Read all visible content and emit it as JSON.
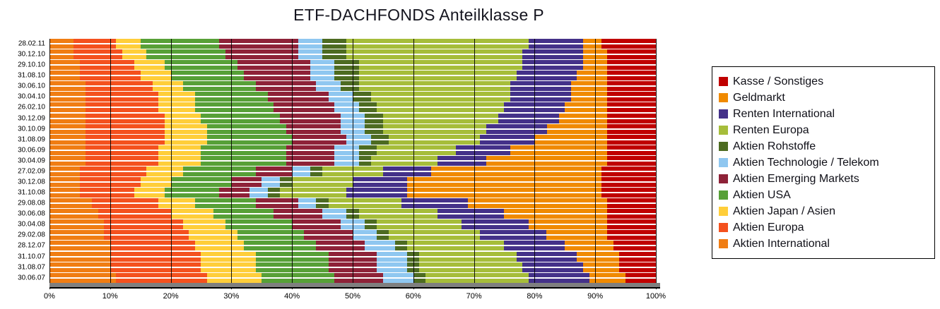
{
  "title": "ETF-DACHFONDS Anteilklasse P",
  "chart_data": {
    "type": "bar",
    "stacked": true,
    "orientation": "horizontal",
    "title": "ETF-DACHFONDS Anteilklasse P",
    "xlabel": "",
    "ylabel": "",
    "xlim": [
      0,
      100
    ],
    "grid": "vertical",
    "legend_position": "right",
    "x_tick_labels": [
      "0%",
      "10%",
      "20%",
      "30%",
      "40%",
      "50%",
      "60%",
      "70%",
      "80%",
      "90%",
      "100%"
    ],
    "categories": [
      "28.02.11",
      "30.12.10",
      "29.10.10",
      "31.08.10",
      "30.06.10",
      "30.04.10",
      "26.02.10",
      "30.12.09",
      "30.10.09",
      "31.08.09",
      "30.06.09",
      "30.04.09",
      "27.02.09",
      "30.12.08",
      "31.10.08",
      "29.08.08",
      "30.06.08",
      "30.04.08",
      "29.02.08",
      "28.12.07",
      "31.10.07",
      "31.08.07",
      "30.06.07"
    ],
    "series": [
      {
        "name": "Aktien International",
        "color": "#F07D13",
        "values": [
          4,
          4,
          5,
          5,
          6,
          6,
          6,
          6,
          6,
          6,
          6,
          6,
          5,
          5,
          5,
          7,
          8,
          9,
          9,
          10,
          10,
          10,
          11
        ]
      },
      {
        "name": "Aktien Europa",
        "color": "#F4511E",
        "values": [
          7,
          8,
          9,
          10,
          11,
          12,
          12,
          13,
          13,
          13,
          12,
          12,
          11,
          10,
          9,
          11,
          12,
          13,
          14,
          14,
          15,
          15,
          15
        ]
      },
      {
        "name": "Aktien Japan / Asien",
        "color": "#FFCE3A",
        "values": [
          4,
          4,
          5,
          5,
          5,
          6,
          6,
          6,
          7,
          7,
          7,
          7,
          6,
          5,
          5,
          6,
          7,
          7,
          8,
          8,
          9,
          9,
          9
        ]
      },
      {
        "name": "Aktien USA",
        "color": "#57A037",
        "values": [
          13,
          13,
          12,
          12,
          12,
          12,
          13,
          13,
          13,
          14,
          14,
          14,
          12,
          10,
          9,
          10,
          10,
          11,
          11,
          12,
          12,
          12,
          12
        ]
      },
      {
        "name": "Aktien Emerging Markets",
        "color": "#8E2238",
        "values": [
          13,
          12,
          12,
          11,
          10,
          10,
          10,
          10,
          9,
          9,
          8,
          8,
          6,
          5,
          5,
          7,
          8,
          8,
          8,
          8,
          8,
          8,
          8
        ]
      },
      {
        "name": "Aktien Technologie / Telekom",
        "color": "#8FC7F0",
        "values": [
          4,
          4,
          4,
          4,
          4,
          4,
          4,
          4,
          4,
          4,
          4,
          4,
          3,
          3,
          3,
          3,
          4,
          4,
          4,
          5,
          5,
          5,
          5
        ]
      },
      {
        "name": "Aktien Rohstoffe",
        "color": "#4D6B21",
        "values": [
          4,
          4,
          4,
          4,
          3,
          3,
          3,
          3,
          3,
          3,
          3,
          2,
          2,
          2,
          2,
          2,
          2,
          2,
          2,
          2,
          2,
          2,
          2
        ]
      },
      {
        "name": "Renten Europa",
        "color": "#A6BD3A",
        "values": [
          30,
          29,
          27,
          26,
          25,
          23,
          21,
          19,
          17,
          15,
          13,
          11,
          10,
          10,
          11,
          12,
          13,
          14,
          15,
          16,
          16,
          17,
          17
        ]
      },
      {
        "name": "Renten International",
        "color": "#443189",
        "values": [
          9,
          10,
          10,
          10,
          10,
          10,
          10,
          10,
          10,
          9,
          9,
          8,
          8,
          9,
          10,
          11,
          11,
          11,
          11,
          10,
          10,
          10,
          10
        ]
      },
      {
        "name": "Geldmarkt",
        "color": "#F08A00",
        "values": [
          3,
          4,
          4,
          5,
          6,
          6,
          7,
          8,
          10,
          12,
          16,
          20,
          28,
          32,
          32,
          23,
          17,
          13,
          10,
          8,
          7,
          6,
          6
        ]
      },
      {
        "name": "Kasse / Sonstiges",
        "color": "#C00000",
        "values": [
          9,
          8,
          8,
          8,
          8,
          8,
          8,
          8,
          8,
          8,
          8,
          8,
          9,
          9,
          9,
          8,
          8,
          8,
          8,
          7,
          6,
          6,
          5
        ]
      }
    ],
    "legend_order": [
      "Kasse / Sonstiges",
      "Geldmarkt",
      "Renten International",
      "Renten Europa",
      "Aktien Rohstoffe",
      "Aktien Technologie / Telekom",
      "Aktien Emerging Markets",
      "Aktien USA",
      "Aktien Japan / Asien",
      "Aktien Europa",
      "Aktien International"
    ]
  }
}
